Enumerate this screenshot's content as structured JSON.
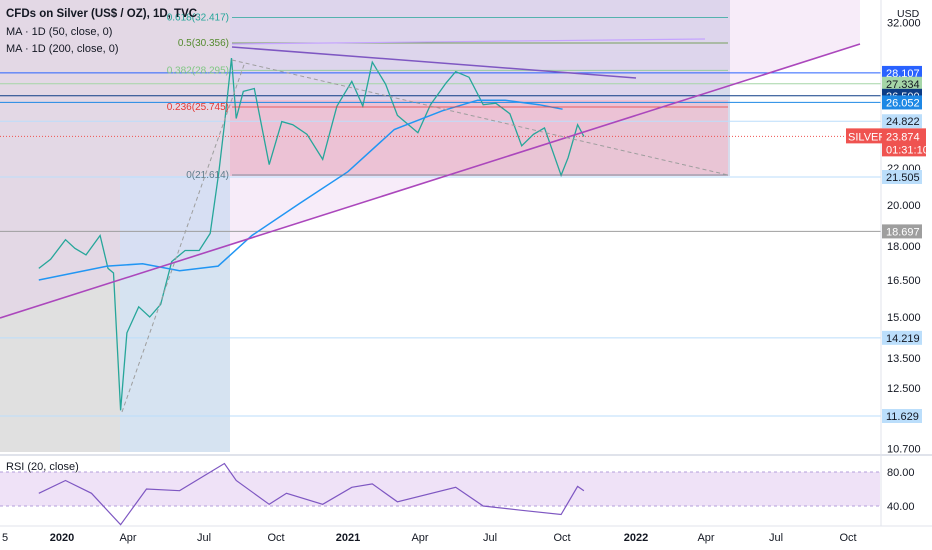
{
  "header": {
    "symbol_title": "CFDs on Silver (US$ / OZ), 1D, TVC",
    "ma_50": "MA · 1D (50, close, 0)",
    "ma_200": "MA · 1D (200, close, 0)",
    "rsi_label": "RSI (20, close)",
    "currency": "USD"
  },
  "chart_data": {
    "type": "line",
    "title": "CFDs on Silver (US$ / OZ), 1D, TVC",
    "x_ticks": [
      "5",
      "2020",
      "Apr",
      "Jul",
      "Oct",
      "2021",
      "Apr",
      "Jul",
      "Oct",
      "2022",
      "Apr",
      "Jul",
      "Oct"
    ],
    "y_ticks": [
      "32.000",
      "22.000",
      "20.000",
      "18.000",
      "16.500",
      "15.000",
      "13.500",
      "12.500",
      "10.700"
    ],
    "y_scale": "log",
    "rsi_ticks": [
      "80.00",
      "40.00"
    ],
    "price_levels": [
      {
        "label": "28.107",
        "value": 28.107,
        "color": "#2962ff"
      },
      {
        "label": "27.334",
        "value": 27.334,
        "color": "#a5d6a7"
      },
      {
        "label": "26.500",
        "value": 26.5,
        "color": "#0d3c85"
      },
      {
        "label": "26.052",
        "value": 26.052,
        "color": "#1e88e5"
      },
      {
        "label": "24.822",
        "value": 24.822,
        "color": "#bbdefb"
      },
      {
        "label": "21.505",
        "value": 21.505,
        "color": "#bbdefb"
      },
      {
        "label": "18.697",
        "value": 18.697,
        "color": "#9e9e9e"
      },
      {
        "label": "14.219",
        "value": 14.219,
        "color": "#bbdefb"
      },
      {
        "label": "11.629",
        "value": 11.629,
        "color": "#bbdefb"
      }
    ],
    "current": {
      "symbol": "SILVER",
      "price": "23.874",
      "value": 23.874,
      "countdown": "01:31:10",
      "color": "#ef5350"
    },
    "fib_levels": [
      {
        "label": "0.618(32.417)",
        "value": 32.417,
        "color": "#26a69a"
      },
      {
        "label": "0.5(30.356)",
        "value": 30.356,
        "color": "#558b2f"
      },
      {
        "label": "0.382(28.295)",
        "value": 28.295,
        "color": "#81c784"
      },
      {
        "label": "0.236(25.745)",
        "value": 25.745,
        "color": "#e53935"
      },
      {
        "label": "0(21.614)",
        "value": 21.614,
        "color": "#607d8b"
      }
    ],
    "series": [
      {
        "name": "",
        "kind": "price",
        "color": "#26a69a",
        "points": [
          [
            "2019-12-05",
            17.0
          ],
          [
            "2019-12-20",
            17.4
          ],
          [
            "2020-01-08",
            18.3
          ],
          [
            "2020-01-20",
            17.9
          ],
          [
            "2020-02-03",
            17.6
          ],
          [
            "2020-02-21",
            18.5
          ],
          [
            "2020-03-02",
            17.0
          ],
          [
            "2020-03-09",
            16.8
          ],
          [
            "2020-03-18",
            11.8
          ],
          [
            "2020-03-26",
            14.4
          ],
          [
            "2020-04-10",
            15.4
          ],
          [
            "2020-04-24",
            15.0
          ],
          [
            "2020-05-08",
            15.5
          ],
          [
            "2020-05-22",
            17.3
          ],
          [
            "2020-06-08",
            17.8
          ],
          [
            "2020-06-26",
            17.8
          ],
          [
            "2020-07-10",
            18.6
          ],
          [
            "2020-07-21",
            21.8
          ],
          [
            "2020-07-28",
            24.6
          ],
          [
            "2020-08-06",
            29.2
          ],
          [
            "2020-08-12",
            25.0
          ],
          [
            "2020-08-21",
            26.8
          ],
          [
            "2020-09-04",
            27.0
          ],
          [
            "2020-09-23",
            22.2
          ],
          [
            "2020-10-09",
            24.8
          ],
          [
            "2020-10-23",
            24.6
          ],
          [
            "2020-11-10",
            24.0
          ],
          [
            "2020-11-30",
            22.5
          ],
          [
            "2020-12-18",
            25.8
          ],
          [
            "2021-01-06",
            27.5
          ],
          [
            "2021-01-20",
            25.8
          ],
          [
            "2021-02-01",
            28.9
          ],
          [
            "2021-02-18",
            27.3
          ],
          [
            "2021-03-05",
            25.2
          ],
          [
            "2021-03-31",
            24.1
          ],
          [
            "2021-04-16",
            25.9
          ],
          [
            "2021-05-06",
            27.4
          ],
          [
            "2021-05-18",
            28.2
          ],
          [
            "2021-06-04",
            27.8
          ],
          [
            "2021-06-22",
            25.9
          ],
          [
            "2021-07-08",
            26.0
          ],
          [
            "2021-07-26",
            25.3
          ],
          [
            "2021-08-10",
            23.3
          ],
          [
            "2021-08-25",
            24.0
          ],
          [
            "2021-09-08",
            24.4
          ],
          [
            "2021-09-29",
            21.6
          ],
          [
            "2021-10-08",
            22.6
          ],
          [
            "2021-10-20",
            24.6
          ],
          [
            "2021-10-28",
            23.874
          ]
        ]
      },
      {
        "name": "MA · 1D (200, close, 0)",
        "kind": "ma",
        "color": "#2196f3",
        "points": [
          [
            "2019-12-05",
            16.5
          ],
          [
            "2020-03-01",
            17.1
          ],
          [
            "2020-04-15",
            17.2
          ],
          [
            "2020-06-01",
            16.9
          ],
          [
            "2020-07-20",
            17.1
          ],
          [
            "2020-09-01",
            18.5
          ],
          [
            "2020-11-01",
            20.1
          ],
          [
            "2021-01-01",
            21.8
          ],
          [
            "2021-03-01",
            24.3
          ],
          [
            "2021-05-01",
            25.5
          ],
          [
            "2021-06-15",
            26.2
          ],
          [
            "2021-07-20",
            26.2
          ],
          [
            "2021-09-01",
            25.9
          ],
          [
            "2021-10-01",
            25.6
          ]
        ]
      },
      {
        "name": "RSI (20, close)",
        "kind": "rsi",
        "color": "#7e57c2",
        "points": [
          [
            "2019-12-05",
            55
          ],
          [
            "2020-01-08",
            70
          ],
          [
            "2020-02-10",
            55
          ],
          [
            "2020-03-18",
            18
          ],
          [
            "2020-04-20",
            60
          ],
          [
            "2020-06-01",
            58
          ],
          [
            "2020-07-28",
            90
          ],
          [
            "2020-08-12",
            70
          ],
          [
            "2020-09-23",
            42
          ],
          [
            "2020-10-15",
            55
          ],
          [
            "2020-11-30",
            42
          ],
          [
            "2021-01-06",
            62
          ],
          [
            "2021-02-01",
            66
          ],
          [
            "2021-03-05",
            45
          ],
          [
            "2021-05-18",
            62
          ],
          [
            "2021-06-22",
            40
          ],
          [
            "2021-08-10",
            35
          ],
          [
            "2021-09-29",
            30
          ],
          [
            "2021-10-20",
            63
          ],
          [
            "2021-10-28",
            58
          ]
        ]
      }
    ]
  }
}
